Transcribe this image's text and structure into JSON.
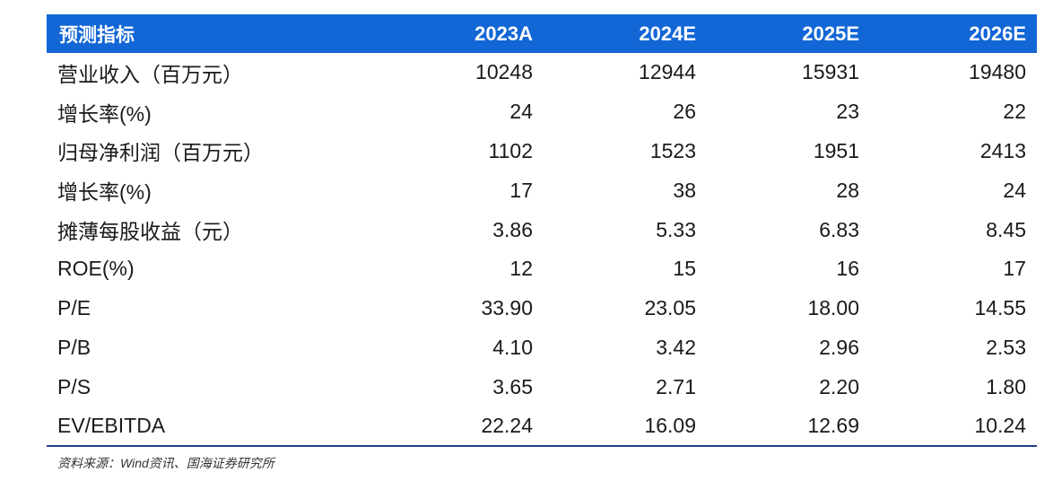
{
  "table": {
    "header": [
      "预测指标",
      "2023A",
      "2024E",
      "2025E",
      "2026E"
    ],
    "rows": [
      [
        "营业收入（百万元）",
        "10248",
        "12944",
        "15931",
        "19480"
      ],
      [
        "增长率(%)",
        "24",
        "26",
        "23",
        "22"
      ],
      [
        "归母净利润（百万元）",
        "1102",
        "1523",
        "1951",
        "2413"
      ],
      [
        "增长率(%)",
        "17",
        "38",
        "28",
        "24"
      ],
      [
        "摊薄每股收益（元）",
        "3.86",
        "5.33",
        "6.83",
        "8.45"
      ],
      [
        "ROE(%)",
        "12",
        "15",
        "16",
        "17"
      ],
      [
        "P/E",
        "33.90",
        "23.05",
        "18.00",
        "14.55"
      ],
      [
        "P/B",
        "4.10",
        "3.42",
        "2.96",
        "2.53"
      ],
      [
        "P/S",
        "3.65",
        "2.71",
        "2.20",
        "1.80"
      ],
      [
        "EV/EBITDA",
        "22.24",
        "16.09",
        "12.69",
        "10.24"
      ]
    ]
  },
  "source": "资料来源：Wind资讯、国海证券研究所",
  "colors": {
    "header_bg": "#1266d6",
    "header_text": "#ffffff",
    "bottom_rule": "#1e3f8a"
  }
}
